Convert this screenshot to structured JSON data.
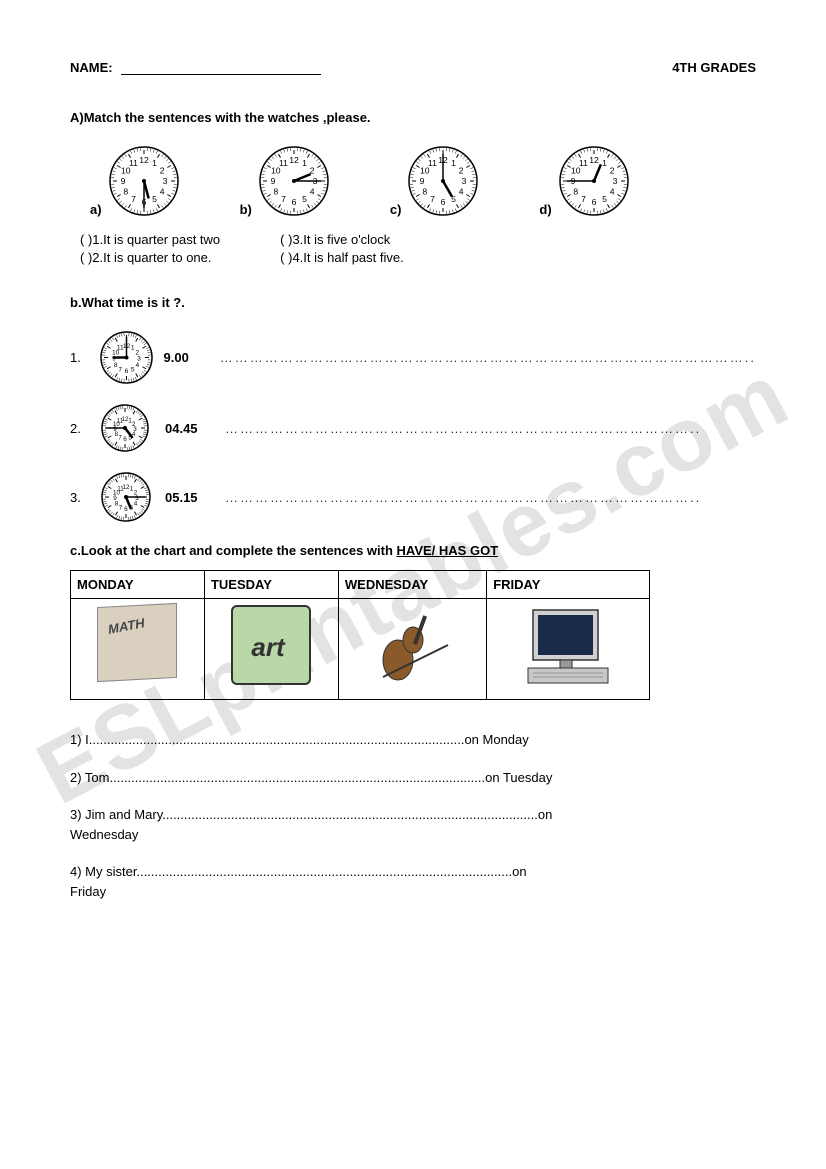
{
  "header": {
    "name_label": "NAME:",
    "grade_label": "4TH GRADES"
  },
  "section_a": {
    "title": "A)Match the sentences with the watches ,please.",
    "clocks": [
      {
        "label": "a)",
        "hour": 5,
        "minute": 30
      },
      {
        "label": "b)",
        "hour": 2,
        "minute": 15
      },
      {
        "label": "c)",
        "hour": 5,
        "minute": 0
      },
      {
        "label": "d)",
        "hour": 12,
        "minute": 45
      }
    ],
    "answers_left": [
      "(  )1.It is quarter past two",
      "(  )2.It is quarter to one."
    ],
    "answers_right": [
      "(  )3.It is five o'clock",
      "(  )4.It is  half past five."
    ]
  },
  "section_b": {
    "title": "b.What time is it ?.",
    "items": [
      {
        "num": "1.",
        "hour": 9,
        "minute": 0,
        "digital": "9.00"
      },
      {
        "num": "2.",
        "hour": 4,
        "minute": 45,
        "digital": "04.45"
      },
      {
        "num": "3.",
        "hour": 5,
        "minute": 15,
        "digital": "05.15"
      }
    ]
  },
  "section_c": {
    "title_prefix": "c.Look at the chart and complete the sentences with ",
    "title_underlined": "HAVE/ HAS GOT",
    "days": [
      "MONDAY",
      "TUESDAY",
      "WEDNESDAY",
      "FRIDAY"
    ],
    "subjects": [
      "math-book",
      "art",
      "violin",
      "computer"
    ],
    "fills": [
      {
        "prefix": "1) I",
        "suffix": "on Monday"
      },
      {
        "prefix": "2) Tom",
        "suffix": "on Tuesday"
      },
      {
        "prefix": "3) Jim and Mary",
        "suffix": "on",
        "suffix2": "Wednesday"
      },
      {
        "prefix": "4) My sister",
        "suffix": "on",
        "suffix2": "Friday"
      }
    ]
  },
  "watermark_text": "ESLprintables.com",
  "dots_long": "……………………………………………………………………………………………..",
  "dots_med": "…………………………………………………………………………………..",
  "dots_fill": "........................................................................................................"
}
